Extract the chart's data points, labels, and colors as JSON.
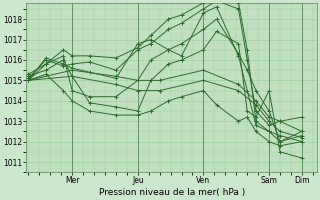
{
  "title": "",
  "xlabel": "Pression niveau de la mer( hPa )",
  "ylabel": "",
  "bg_color": "#cce8cc",
  "plot_bg_color": "#c0e0c0",
  "grid_color": "#99cc99",
  "line_color": "#2d6a2d",
  "marker_color": "#2d6a2d",
  "ylim": [
    1010.5,
    1018.8
  ],
  "xlim": [
    -0.05,
    6.6
  ],
  "yticks": [
    1011,
    1012,
    1013,
    1014,
    1015,
    1016,
    1017,
    1018
  ],
  "xtick_positions": [
    1.0,
    2.5,
    4.0,
    5.5,
    6.25
  ],
  "xtick_labels": [
    "Mer",
    "Jeu",
    "Ven",
    "Sam",
    "Dim"
  ],
  "vlines": [
    1.0,
    2.5,
    4.0,
    5.5,
    6.25
  ],
  "series": [
    [
      0.0,
      1015.0,
      0.4,
      1016.1,
      0.8,
      1015.8,
      1.0,
      1015.6,
      1.4,
      1015.4,
      2.0,
      1015.1,
      2.5,
      1016.8,
      2.8,
      1017.0,
      3.2,
      1016.5,
      3.5,
      1016.2,
      4.0,
      1018.3,
      4.3,
      1018.6,
      4.8,
      1016.2,
      5.0,
      1014.5,
      5.2,
      1012.8,
      5.5,
      1012.5,
      5.75,
      1012.0,
      6.25,
      1012.3
    ],
    [
      0.0,
      1015.1,
      0.4,
      1016.0,
      0.8,
      1015.7,
      1.0,
      1015.8,
      1.4,
      1015.9,
      2.0,
      1015.5,
      2.5,
      1016.5,
      2.8,
      1016.8,
      3.2,
      1017.5,
      3.5,
      1017.8,
      4.0,
      1018.5,
      4.3,
      1018.9,
      4.8,
      1018.5,
      5.0,
      1016.0,
      5.2,
      1013.5,
      5.5,
      1012.8,
      5.75,
      1013.0,
      6.25,
      1013.2
    ],
    [
      0.0,
      1015.2,
      0.4,
      1015.5,
      0.8,
      1016.0,
      1.0,
      1015.2,
      1.4,
      1013.9,
      2.0,
      1013.7,
      2.5,
      1013.5,
      2.8,
      1015.0,
      3.2,
      1015.8,
      3.5,
      1016.0,
      4.0,
      1016.5,
      4.3,
      1017.4,
      4.8,
      1016.8,
      5.0,
      1013.5,
      5.2,
      1013.2,
      5.5,
      1014.5,
      5.75,
      1011.5,
      6.25,
      1011.2
    ],
    [
      0.0,
      1015.0,
      0.4,
      1015.8,
      0.8,
      1016.2,
      1.0,
      1014.5,
      1.4,
      1014.2,
      2.0,
      1014.2,
      2.5,
      1015.0,
      2.8,
      1016.0,
      3.2,
      1016.5,
      3.5,
      1016.8,
      4.0,
      1017.5,
      4.3,
      1018.0,
      4.8,
      1016.3,
      5.0,
      1015.5,
      5.2,
      1014.5,
      5.5,
      1013.5,
      5.75,
      1012.0,
      6.25,
      1012.5
    ],
    [
      0.0,
      1015.0,
      0.4,
      1015.3,
      0.8,
      1014.5,
      1.0,
      1014.0,
      1.4,
      1013.5,
      2.0,
      1013.3,
      2.5,
      1013.3,
      2.8,
      1013.5,
      3.2,
      1014.0,
      3.5,
      1014.2,
      4.0,
      1014.5,
      4.3,
      1013.8,
      4.8,
      1013.0,
      5.0,
      1013.2,
      5.2,
      1012.5,
      5.5,
      1012.0,
      5.75,
      1011.8,
      6.25,
      1012.0
    ],
    [
      0.0,
      1015.0,
      1.0,
      1015.2,
      2.0,
      1014.8,
      2.5,
      1014.5,
      3.0,
      1014.5,
      4.0,
      1015.0,
      4.8,
      1014.5,
      5.2,
      1013.8,
      5.5,
      1013.0,
      5.75,
      1012.5,
      6.25,
      1012.2
    ],
    [
      0.0,
      1015.0,
      1.0,
      1015.5,
      2.0,
      1015.2,
      2.5,
      1015.0,
      3.0,
      1015.0,
      4.0,
      1015.5,
      4.8,
      1014.8,
      5.2,
      1014.0,
      5.5,
      1013.2,
      5.75,
      1013.0,
      6.25,
      1012.5
    ],
    [
      0.0,
      1015.3,
      0.4,
      1015.8,
      0.8,
      1016.5,
      1.0,
      1016.2,
      1.4,
      1016.2,
      2.0,
      1016.1,
      2.5,
      1016.6,
      2.8,
      1017.2,
      3.2,
      1018.0,
      3.5,
      1018.2,
      4.0,
      1018.8,
      4.3,
      1019.1,
      4.8,
      1018.8,
      5.0,
      1016.5,
      5.2,
      1013.0,
      5.5,
      1012.5,
      5.75,
      1012.3,
      6.25,
      1012.0
    ]
  ]
}
